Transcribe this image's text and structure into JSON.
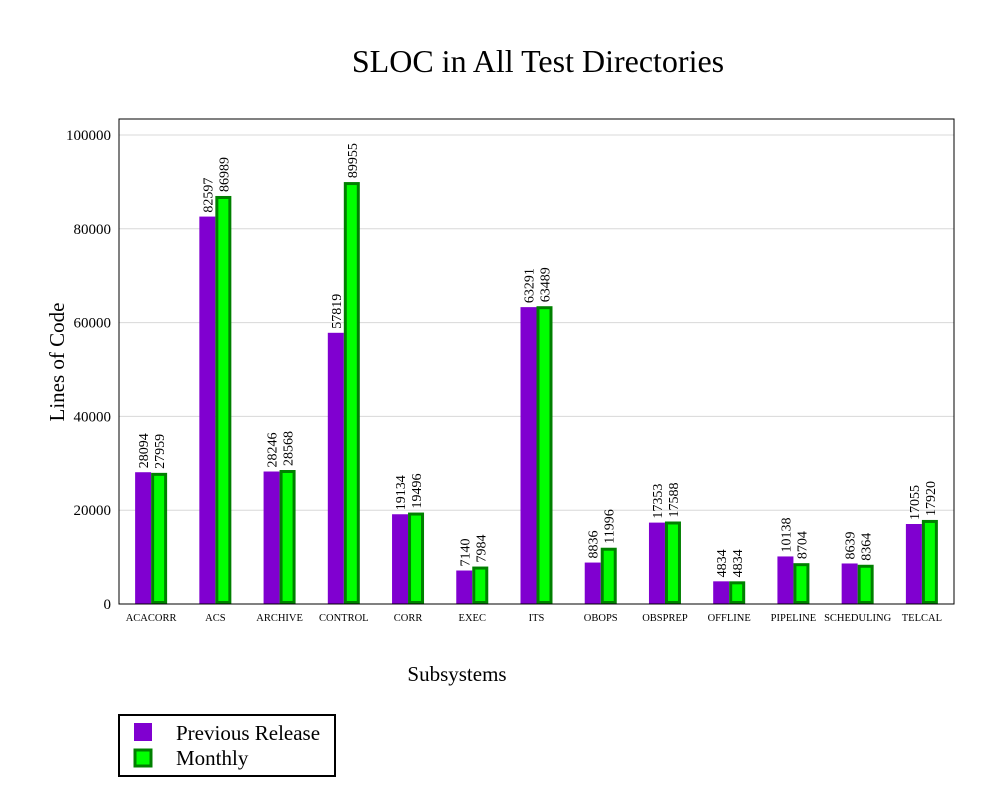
{
  "chart_data": {
    "type": "bar",
    "title": "SLOC in All Test Directories",
    "xlabel": "Subsystems",
    "ylabel": "Lines of Code",
    "ylim": [
      0,
      103400
    ],
    "yticks": [
      0,
      20000,
      40000,
      60000,
      80000,
      100000
    ],
    "grid": true,
    "legend_position": "bottom-left",
    "categories": [
      "ACACORR",
      "ACS",
      "ARCHIVE",
      "CONTROL",
      "CORR",
      "EXEC",
      "ITS",
      "OBOPS",
      "OBSPREP",
      "OFFLINE",
      "PIPELINE",
      "SCHEDULING",
      "TELCAL"
    ],
    "series": [
      {
        "name": "Previous Release",
        "color": "#8000d0",
        "values": [
          28094,
          82597,
          28246,
          57819,
          19134,
          7140,
          63291,
          8836,
          17353,
          4834,
          10138,
          8639,
          17055
        ]
      },
      {
        "name": "Monthly",
        "color": "#00ff00",
        "edge_color": "#008000",
        "values": [
          27959,
          86989,
          28568,
          89955,
          19496,
          7984,
          63489,
          11996,
          17588,
          4834,
          8704,
          8364,
          17920
        ]
      }
    ]
  }
}
